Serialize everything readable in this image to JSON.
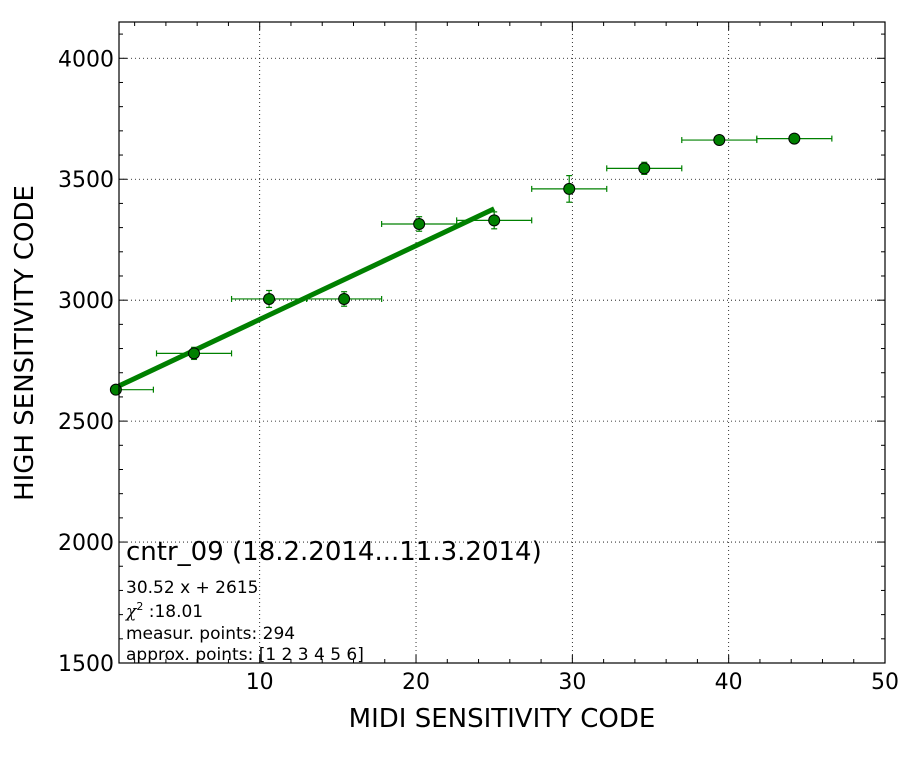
{
  "chart_data": {
    "type": "scatter",
    "xlabel": "MIDI SENSITIVITY CODE",
    "ylabel": "HIGH SENSITIVITY CODE",
    "xlim": [
      1,
      50
    ],
    "ylim": [
      1500,
      4150
    ],
    "x_ticks": [
      10,
      20,
      30,
      40,
      50
    ],
    "y_ticks": [
      1500,
      2000,
      2500,
      3000,
      3500,
      4000
    ],
    "grid": true,
    "grid_style": "dotted",
    "colors": {
      "series": "#008000",
      "marker_edge": "#000000"
    },
    "series": [
      {
        "kind": "errorbar",
        "points": [
          {
            "x": 0.8,
            "y": 2630,
            "xerr": 2.4,
            "yerr": 15
          },
          {
            "x": 5.8,
            "y": 2780,
            "xerr": 2.4,
            "yerr": 25
          },
          {
            "x": 10.6,
            "y": 3005,
            "xerr": 2.4,
            "yerr": 35
          },
          {
            "x": 15.4,
            "y": 3005,
            "xerr": 2.4,
            "yerr": 30
          },
          {
            "x": 20.2,
            "y": 3315,
            "xerr": 2.4,
            "yerr": 30
          },
          {
            "x": 25.0,
            "y": 3330,
            "xerr": 2.4,
            "yerr": 35
          },
          {
            "x": 29.8,
            "y": 3460,
            "xerr": 2.4,
            "yerr": 55
          },
          {
            "x": 34.6,
            "y": 3545,
            "xerr": 2.4,
            "yerr": 25
          },
          {
            "x": 39.4,
            "y": 3662,
            "xerr": 2.4,
            "yerr": 15
          },
          {
            "x": 44.2,
            "y": 3668,
            "xerr": 2.4,
            "yerr": 15
          }
        ]
      },
      {
        "kind": "fit-line",
        "slope": 30.52,
        "intercept": 2615,
        "x_range": [
          1,
          25
        ]
      }
    ],
    "annotations": {
      "title": "cntr_09 (18.2.2014...11.3.2014)",
      "equation": "30.52 x + 2615",
      "chi_symbol": "χ",
      "chi_exponent": "2",
      "chi_value": " :18.01",
      "measur": "measur. points: 294",
      "approx": "approx. points: [1 2 3 4 5 6]"
    }
  }
}
